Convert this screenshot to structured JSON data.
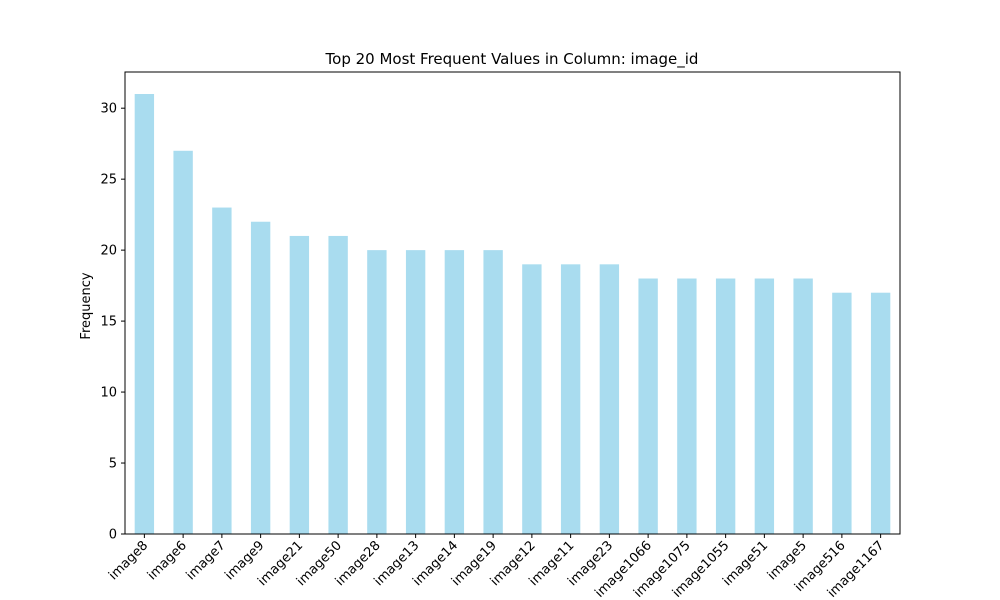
{
  "chart_data": {
    "type": "bar",
    "title": "Top 20 Most Frequent Values in Column: image_id",
    "xlabel": "",
    "ylabel": "Frequency",
    "categories": [
      "image8",
      "image6",
      "image7",
      "image9",
      "image21",
      "image50",
      "image28",
      "image13",
      "image14",
      "image19",
      "image12",
      "image11",
      "image23",
      "image1066",
      "image1075",
      "image1055",
      "image51",
      "image5",
      "image516",
      "image1167"
    ],
    "values": [
      31,
      27,
      23,
      22,
      21,
      21,
      20,
      20,
      20,
      20,
      19,
      19,
      19,
      18,
      18,
      18,
      18,
      18,
      17,
      17
    ],
    "ylim": [
      0,
      32.55
    ],
    "yticks": [
      0,
      5,
      10,
      15,
      20,
      25,
      30
    ],
    "grid": false,
    "bar_color": "#a9dcef"
  }
}
